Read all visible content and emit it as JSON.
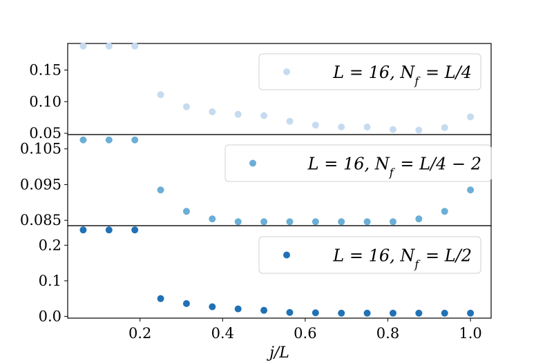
{
  "chart_data": [
    {
      "type": "scatter",
      "panel": "top",
      "x": [
        0.0625,
        0.125,
        0.1875,
        0.25,
        0.3125,
        0.375,
        0.4375,
        0.5,
        0.5625,
        0.625,
        0.6875,
        0.75,
        0.8125,
        0.875,
        0.9375,
        1.0
      ],
      "series": [
        {
          "name": "L = 16, N_f = L/4",
          "color": "#c6dbef",
          "values": [
            0.188,
            0.188,
            0.188,
            0.111,
            0.092,
            0.084,
            0.08,
            0.078,
            0.069,
            0.063,
            0.06,
            0.06,
            0.056,
            0.055,
            0.059,
            0.076
          ]
        }
      ],
      "ylim": [
        0.048,
        0.192
      ],
      "yticks": [
        "0.15",
        "0.10",
        "0.05"
      ],
      "legend_position": "upper right"
    },
    {
      "type": "scatter",
      "panel": "middle",
      "x": [
        0.0625,
        0.125,
        0.1875,
        0.25,
        0.3125,
        0.375,
        0.4375,
        0.5,
        0.5625,
        0.625,
        0.6875,
        0.75,
        0.8125,
        0.875,
        0.9375,
        1.0
      ],
      "series": [
        {
          "name": "L = 16, N_f = L/4 − 2",
          "color": "#6baed6",
          "values": [
            0.1075,
            0.1075,
            0.1075,
            0.0935,
            0.0875,
            0.0854,
            0.0846,
            0.0846,
            0.0846,
            0.0846,
            0.0846,
            0.0846,
            0.0846,
            0.0854,
            0.0875,
            0.0935
          ]
        }
      ],
      "ylim": [
        0.0835,
        0.109
      ],
      "yticks": [
        "0.105",
        "0.095",
        "0.085"
      ],
      "legend_position": "upper right"
    },
    {
      "type": "scatter",
      "panel": "bottom",
      "x": [
        0.0625,
        0.125,
        0.1875,
        0.25,
        0.3125,
        0.375,
        0.4375,
        0.5,
        0.5625,
        0.625,
        0.6875,
        0.75,
        0.8125,
        0.875,
        0.9375,
        1.0
      ],
      "series": [
        {
          "name": "L = 16, N_f = L/2",
          "color": "#2171b5",
          "values": [
            0.243,
            0.243,
            0.243,
            0.05,
            0.036,
            0.027,
            0.021,
            0.017,
            0.011,
            0.01,
            0.009,
            0.009,
            0.009,
            0.009,
            0.009,
            0.009
          ]
        }
      ],
      "ylim": [
        -0.005,
        0.255
      ],
      "yticks": [
        "0.2",
        "0.1",
        "0.0"
      ],
      "xlim": [
        0.025,
        1.05
      ],
      "xticks": [
        "0.2",
        "0.4",
        "0.6",
        "0.8",
        "1.0"
      ],
      "xlabel": "j/L",
      "legend_position": "upper right"
    }
  ]
}
